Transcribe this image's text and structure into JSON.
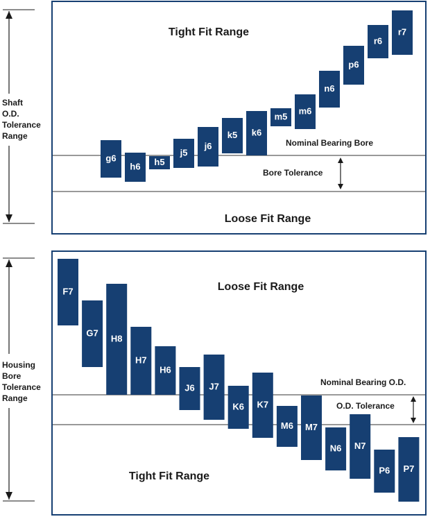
{
  "shaft_panel": {
    "tight_label": "Tight Fit Range",
    "loose_label": "Loose Fit Range",
    "reference_label": "Nominal Bearing Bore",
    "tolerance_label": "Bore Tolerance",
    "side_label": [
      "Shaft",
      "O.D.",
      "Tolerance",
      "Range"
    ],
    "bands": [
      {
        "label": "g6",
        "top": -1.1,
        "bottom": 1.6
      },
      {
        "label": "h6",
        "top": -0.2,
        "bottom": 1.9
      },
      {
        "label": "h5",
        "top": 0.05,
        "bottom": 1.0
      },
      {
        "label": "j5",
        "top": -1.2,
        "bottom": 0.9
      },
      {
        "label": "j6",
        "top": -2.05,
        "bottom": 0.8
      },
      {
        "label": "k5",
        "top": -2.7,
        "bottom": -0.15
      },
      {
        "label": "k6",
        "top": -3.2,
        "bottom": 0.0
      },
      {
        "label": "m5",
        "top": -3.4,
        "bottom": -2.1
      },
      {
        "label": "m6",
        "top": -4.4,
        "bottom": -1.9
      },
      {
        "label": "n6",
        "top": -6.1,
        "bottom": -3.45
      },
      {
        "label": "p6",
        "top": -7.9,
        "bottom": -5.1
      },
      {
        "label": "r6",
        "top": -9.4,
        "bottom": -7.0
      },
      {
        "label": "r7",
        "top": -10.45,
        "bottom": -7.25
      }
    ]
  },
  "housing_panel": {
    "loose_label": "Loose Fit Range",
    "tight_label": "Tight Fit Range",
    "reference_label": "Nominal Bearing O.D.",
    "tolerance_label": "O.D. Tolerance",
    "side_label": [
      "Housing",
      "Bore",
      "Tolerance",
      "Range"
    ],
    "bands": [
      {
        "label": "F7",
        "top": -9.8,
        "bottom": -5.0
      },
      {
        "label": "G7",
        "top": -6.8,
        "bottom": -2.0
      },
      {
        "label": "H8",
        "top": -8.0,
        "bottom": 0.0
      },
      {
        "label": "H7",
        "top": -4.9,
        "bottom": 0.0
      },
      {
        "label": "H6",
        "top": -3.5,
        "bottom": 0.0
      },
      {
        "label": "J6",
        "top": -2.0,
        "bottom": 1.1
      },
      {
        "label": "J7",
        "top": -2.9,
        "bottom": 1.8
      },
      {
        "label": "K6",
        "top": -0.65,
        "bottom": 2.45
      },
      {
        "label": "K7",
        "top": -1.6,
        "bottom": 3.1
      },
      {
        "label": "M6",
        "top": 0.8,
        "bottom": 3.75
      },
      {
        "label": "M7",
        "top": 0.05,
        "bottom": 4.7
      },
      {
        "label": "N6",
        "top": 2.35,
        "bottom": 5.45
      },
      {
        "label": "N7",
        "top": 1.4,
        "bottom": 6.05
      },
      {
        "label": "P6",
        "top": 3.95,
        "bottom": 7.05
      },
      {
        "label": "P7",
        "top": 3.05,
        "bottom": 7.7
      }
    ]
  }
}
